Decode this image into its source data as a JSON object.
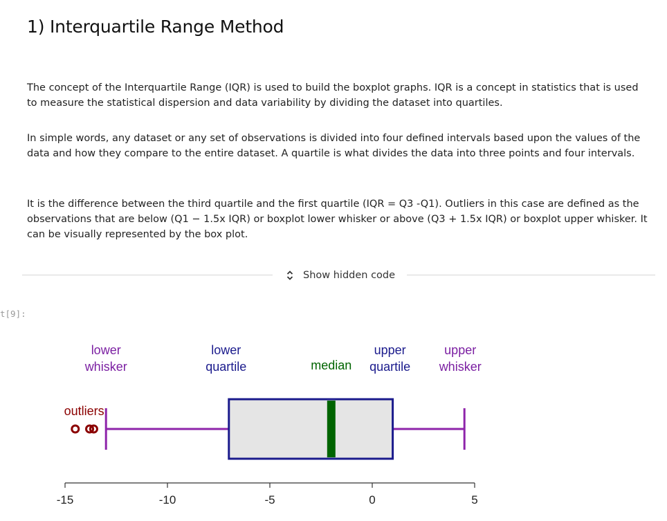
{
  "heading": "1) Interquartile Range Method",
  "paragraphs": [
    "The concept of the Interquartile Range (IQR) is used to build the boxplot graphs. IQR is a concept in statistics that is used to measure the statistical dispersion and data variability by dividing the dataset into quartiles.",
    "In simple words, any dataset or any set of observations is divided into four defined intervals based upon the values of the data and how they compare to the entire dataset. A quartile is what divides the data into three points and four intervals.",
    "It is the difference between the third quartile and the first quartile (IQR = Q3 -Q1). Outliers in this case are defined as the observations that are below (Q1 − 1.5x IQR) or boxplot lower whisker or above (Q3 + 1.5x IQR) or boxplot upper whisker. It can be visually represented by the box plot."
  ],
  "hidden_code": {
    "label": "Show hidden code",
    "icon": "expand-collapse-chevrons-icon"
  },
  "output_prompt": "t[9]:",
  "chart_data": {
    "type": "boxplot",
    "orientation": "horizontal",
    "xlim": [
      -15,
      5
    ],
    "xticks": [
      -15,
      -10,
      -5,
      0,
      5
    ],
    "box": {
      "lower_whisker": -13,
      "q1": -7,
      "median": -2,
      "q3": 1,
      "upper_whisker": 4.5
    },
    "outliers": [
      -14.5,
      -13.8,
      -13.6
    ],
    "annotations": [
      {
        "text": "lower\nwhisker",
        "x": -13,
        "color": "#7b1fa2"
      },
      {
        "text": "lower\nquartile",
        "x": -7,
        "color": "#1a1a8c"
      },
      {
        "text": "median",
        "x": -2,
        "color": "#006400"
      },
      {
        "text": "upper\nquartile",
        "x": 1,
        "color": "#1a1a8c"
      },
      {
        "text": "upper\nwhisker",
        "x": 4.5,
        "color": "#7b1fa2"
      },
      {
        "text": "outliers",
        "x": -14,
        "color": "#8b0000"
      }
    ],
    "colors": {
      "box_fill": "#e5e5e5",
      "box_border": "#1a1a8c",
      "median": "#006400",
      "whisker": "#8e24aa",
      "outlier": "#8b0000",
      "axis": "#333333"
    }
  }
}
